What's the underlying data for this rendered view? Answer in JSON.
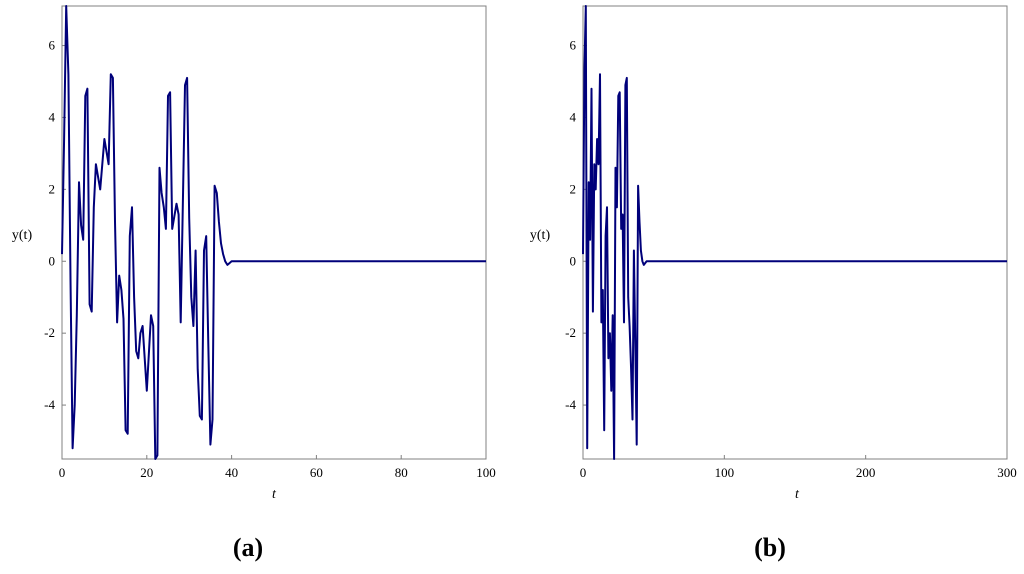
{
  "chart_data": [
    {
      "type": "line",
      "panel_label": "(a)",
      "xlabel": "t",
      "ylabel": "y(t)",
      "xlim": [
        0,
        100
      ],
      "ylim": [
        -5.5,
        7.1
      ],
      "xticks": [
        0,
        20,
        40,
        60,
        80,
        100
      ],
      "yticks": [
        -4,
        -2,
        0,
        2,
        4,
        6
      ],
      "grid": false,
      "series": [
        {
          "color": "#00007a",
          "x": [
            0,
            0.5,
            1,
            1.5,
            2,
            2.5,
            3,
            3.5,
            4,
            4.5,
            5,
            5.5,
            6,
            6.5,
            7,
            7.5,
            8,
            9,
            10,
            11,
            11.5,
            12,
            12.5,
            13,
            13.5,
            14,
            14.5,
            15,
            15.5,
            16,
            16.5,
            17,
            17.5,
            18,
            18.5,
            19,
            20,
            21,
            21.5,
            22,
            22.5,
            23,
            23.5,
            24,
            24.5,
            25,
            25.5,
            26,
            27,
            27.5,
            28,
            29,
            29.5,
            30,
            30.5,
            31,
            31.5,
            32,
            32.5,
            33,
            33.5,
            34,
            34.5,
            35,
            35.5,
            36,
            36.5,
            37,
            37.5,
            38,
            38.5,
            39,
            39.5,
            40,
            40.5,
            41,
            42,
            43,
            44,
            46,
            100
          ],
          "y": [
            0.2,
            3.4,
            7.1,
            5.2,
            -0.5,
            -5.2,
            -4.0,
            -1.5,
            2.2,
            1.0,
            0.6,
            4.6,
            4.8,
            -1.2,
            -1.4,
            1.5,
            2.7,
            2.0,
            3.4,
            2.7,
            5.2,
            5.1,
            1.1,
            -1.7,
            -0.4,
            -0.8,
            -1.6,
            -4.7,
            -4.8,
            0.7,
            1.5,
            -1.0,
            -2.5,
            -2.7,
            -2.0,
            -1.8,
            -3.6,
            -1.5,
            -1.8,
            -5.5,
            -5.4,
            2.6,
            1.9,
            1.5,
            0.9,
            4.6,
            4.7,
            0.9,
            1.6,
            1.3,
            -1.7,
            4.9,
            5.1,
            1.2,
            -1.0,
            -1.8,
            0.3,
            -3.0,
            -4.3,
            -4.4,
            0.3,
            0.7,
            -2.3,
            -5.1,
            -4.4,
            2.1,
            1.9,
            1.1,
            0.5,
            0.2,
            0.0,
            -0.1,
            -0.05,
            0.0,
            0.0,
            0.0,
            0.0,
            0.0,
            0.0,
            0.0,
            0.0
          ]
        }
      ]
    },
    {
      "type": "line",
      "panel_label": "(b)",
      "xlabel": "t",
      "ylabel": "y(t)",
      "xlim": [
        0,
        300
      ],
      "ylim": [
        -5.5,
        7.1
      ],
      "xticks": [
        0,
        100,
        200,
        300
      ],
      "yticks": [
        -4,
        -2,
        0,
        2,
        4,
        6
      ],
      "grid": false,
      "series": [
        {
          "color": "#00007a",
          "x": [
            0,
            1,
            2,
            3,
            4,
            5,
            6,
            7,
            8,
            9,
            10,
            11,
            12,
            13,
            14,
            15,
            16,
            17,
            18,
            19,
            20,
            21,
            22,
            23,
            24,
            25,
            26,
            27,
            28,
            29,
            30,
            31,
            32,
            33,
            34,
            35,
            36,
            37,
            38,
            39,
            40,
            41,
            42,
            43,
            45,
            300
          ],
          "y": [
            0.2,
            5.3,
            7.1,
            -5.2,
            2.2,
            0.6,
            4.8,
            -1.4,
            2.7,
            2.0,
            3.4,
            2.7,
            5.2,
            -1.7,
            -0.8,
            -4.7,
            0.7,
            1.5,
            -2.7,
            -2.0,
            -3.6,
            -1.5,
            -5.5,
            2.6,
            1.5,
            4.6,
            4.7,
            0.9,
            1.3,
            -1.7,
            4.9,
            5.1,
            -1.0,
            -1.8,
            -3.0,
            -4.4,
            0.3,
            -2.3,
            -5.1,
            2.1,
            1.1,
            0.3,
            0.0,
            -0.1,
            0.0,
            0.0
          ]
        }
      ]
    }
  ]
}
